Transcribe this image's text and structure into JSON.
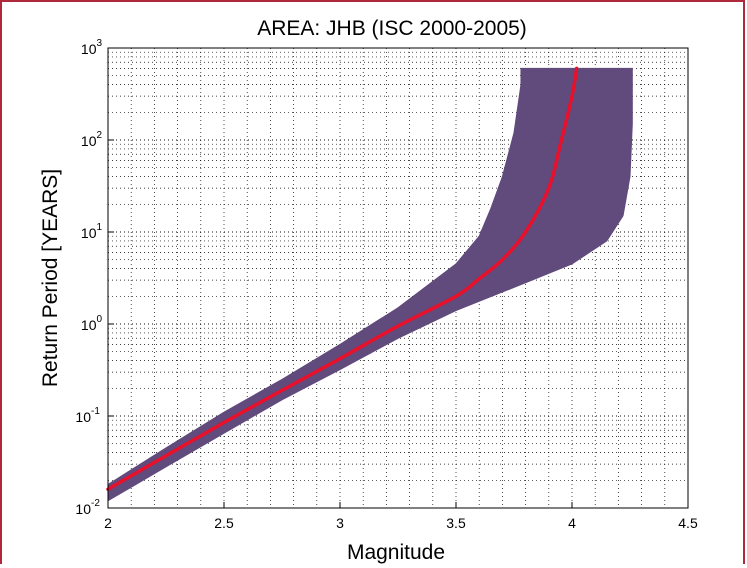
{
  "chart_data": {
    "type": "line",
    "title": "AREA: JHB (ISC 2000-2005)",
    "xlabel": "Magnitude",
    "ylabel": "Return Period [YEARS]",
    "xlim": [
      2,
      4.5
    ],
    "ylim": [
      0.01,
      1000
    ],
    "y_scale": "log",
    "grid": "dotted",
    "x_ticks": [
      "2",
      "2.5",
      "3",
      "3.5",
      "4",
      "4.5"
    ],
    "y_ticks": [
      {
        "base": "10",
        "exp": "-2"
      },
      {
        "base": "10",
        "exp": "-1"
      },
      {
        "base": "10",
        "exp": "0"
      },
      {
        "base": "10",
        "exp": "1"
      },
      {
        "base": "10",
        "exp": "2"
      },
      {
        "base": "10",
        "exp": "3"
      }
    ],
    "series": [
      {
        "kind": "line",
        "color": "#e8102a",
        "x": [
          2.0,
          2.25,
          2.5,
          2.75,
          3.0,
          3.25,
          3.5,
          3.6,
          3.7,
          3.8,
          3.9,
          3.95,
          4.0,
          4.02
        ],
        "y": [
          0.016,
          0.037,
          0.085,
          0.19,
          0.42,
          0.95,
          2.0,
          3.1,
          5.0,
          10.0,
          30.0,
          90.0,
          300.0,
          600.0
        ]
      },
      {
        "kind": "band",
        "color": "#614a7c",
        "x_lower": [
          2.0,
          2.25,
          2.5,
          2.75,
          3.0,
          3.25,
          3.5,
          3.6,
          3.65,
          3.7,
          3.75,
          3.78,
          3.78
        ],
        "y_lower": [
          0.018,
          0.045,
          0.11,
          0.25,
          0.6,
          1.5,
          4.5,
          9.0,
          18.0,
          40.0,
          120.0,
          400.0,
          600.0
        ],
        "x_upper": [
          2.0,
          2.25,
          2.5,
          2.75,
          3.0,
          3.25,
          3.5,
          3.75,
          4.0,
          4.15,
          4.22,
          4.25,
          4.26,
          4.26
        ],
        "y_upper": [
          0.012,
          0.028,
          0.065,
          0.15,
          0.32,
          0.7,
          1.4,
          2.5,
          4.5,
          8.0,
          15.0,
          40.0,
          150.0,
          600.0
        ]
      }
    ]
  }
}
